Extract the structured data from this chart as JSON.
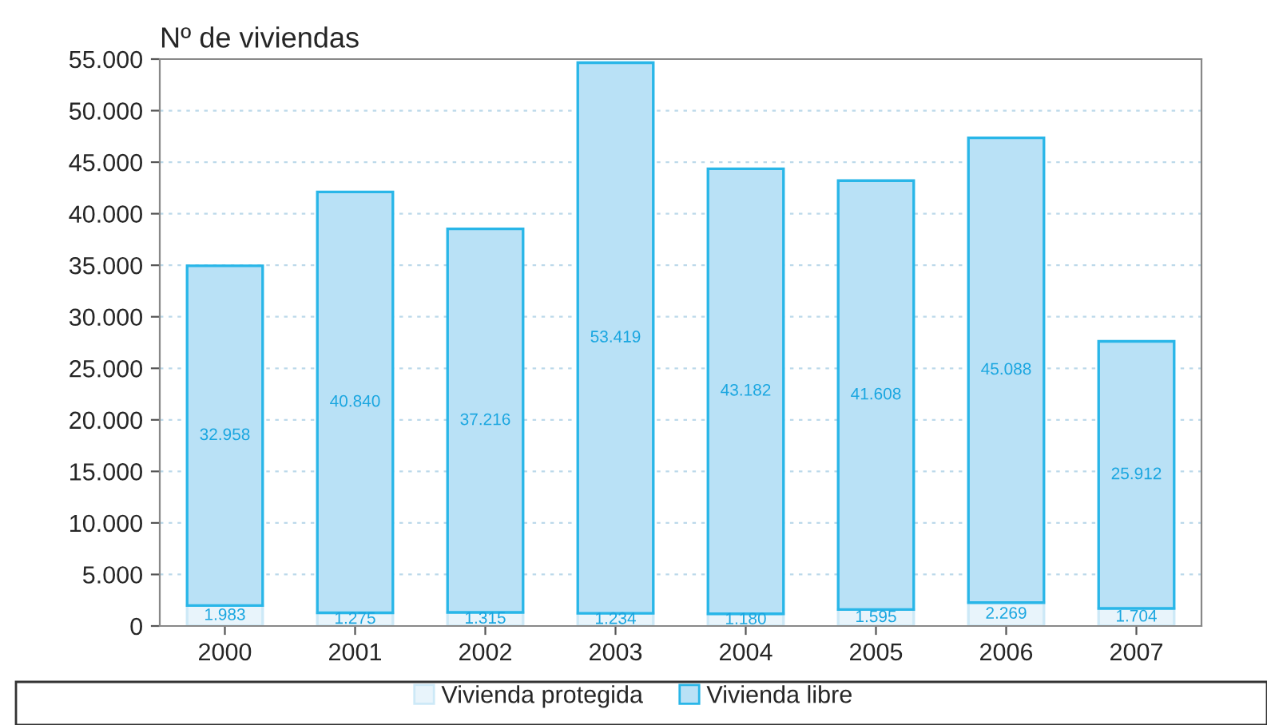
{
  "chart_data": {
    "type": "bar",
    "stacked": true,
    "ylabel": "Nº de viviendas",
    "categories": [
      "2000",
      "2001",
      "2002",
      "2003",
      "2004",
      "2005",
      "2006",
      "2007"
    ],
    "series": [
      {
        "name": "Vivienda protegida",
        "color": "#e8f4fb",
        "values": [
          1983,
          1275,
          1315,
          1234,
          1180,
          1595,
          2269,
          1704
        ],
        "value_labels": [
          "1.983",
          "1.275",
          "1.315",
          "1.234",
          "1.180",
          "1.595",
          "2.269",
          "1.704"
        ]
      },
      {
        "name": "Vivienda libre",
        "color": "#b9e1f6",
        "values": [
          32958,
          40840,
          37216,
          53419,
          43182,
          41608,
          45088,
          25912
        ],
        "value_labels": [
          "32.958",
          "40.840",
          "37.216",
          "53.419",
          "43.182",
          "41.608",
          "45.088",
          "25.912"
        ]
      }
    ],
    "ylim": [
      0,
      55000
    ],
    "yticks": [
      {
        "value": 0,
        "label": "0"
      },
      {
        "value": 5000,
        "label": "5.000"
      },
      {
        "value": 10000,
        "label": "10.000"
      },
      {
        "value": 15000,
        "label": "15.000"
      },
      {
        "value": 20000,
        "label": "20.000"
      },
      {
        "value": 25000,
        "label": "25.000"
      },
      {
        "value": 30000,
        "label": "30.000"
      },
      {
        "value": 35000,
        "label": "35.000"
      },
      {
        "value": 40000,
        "label": "40.000"
      },
      {
        "value": 45000,
        "label": "45.000"
      },
      {
        "value": 50000,
        "label": "50.000"
      },
      {
        "value": 55000,
        "label": "55.000"
      }
    ],
    "grid": "y",
    "legend": "bottom"
  }
}
